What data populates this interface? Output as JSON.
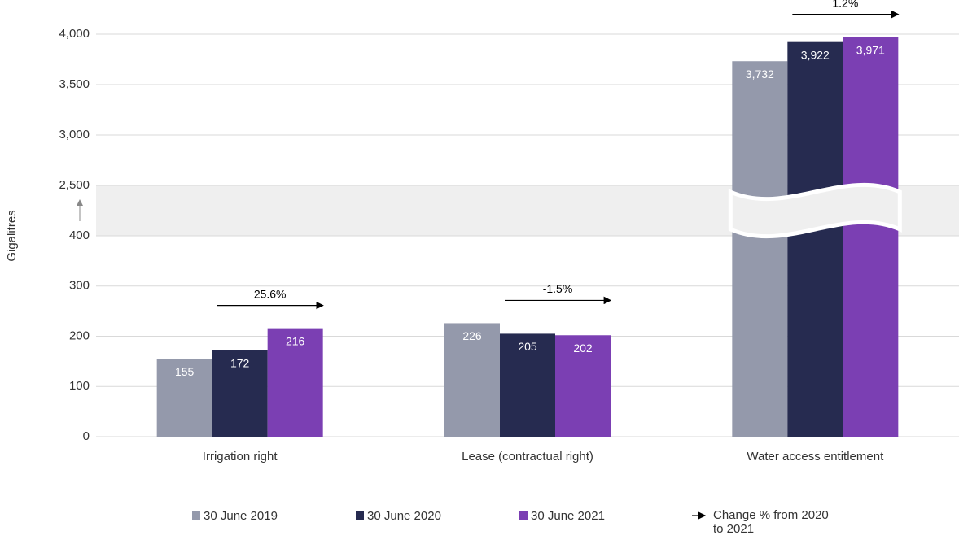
{
  "chart_data": {
    "type": "bar",
    "y_label": "Gigalitres",
    "categories": [
      "Irrigation right",
      "Lease (contractual right)",
      "Water access entitlement"
    ],
    "series": [
      {
        "name": "30 June 2019",
        "color": "#9499ab",
        "values": [
          155,
          226,
          3732
        ],
        "value_labels": [
          "155",
          "226",
          "3,732"
        ]
      },
      {
        "name": "30 June 2020",
        "color": "#262b50",
        "values": [
          172,
          205,
          3922
        ],
        "value_labels": [
          "172",
          "205",
          "3,922"
        ]
      },
      {
        "name": "30 June 2021",
        "color": "#7b3fb3",
        "values": [
          216,
          202,
          3971
        ],
        "value_labels": [
          "216",
          "202",
          "3,971"
        ]
      }
    ],
    "ylim": [
      0,
      4000
    ],
    "ybreak": [
      400,
      2500
    ],
    "yticks": [
      0,
      100,
      200,
      300,
      400,
      {
        "value": 2500,
        "label": "2,500"
      },
      {
        "value": 3000,
        "label": "3,000"
      },
      {
        "value": 3500,
        "label": "3,500"
      },
      {
        "value": 4000,
        "label": "4,000"
      }
    ],
    "grid": true,
    "annotations": [
      "25.6%",
      "-1.5%",
      "1.2%"
    ],
    "annotation_legend": "Change % from 2020 to 2021"
  }
}
